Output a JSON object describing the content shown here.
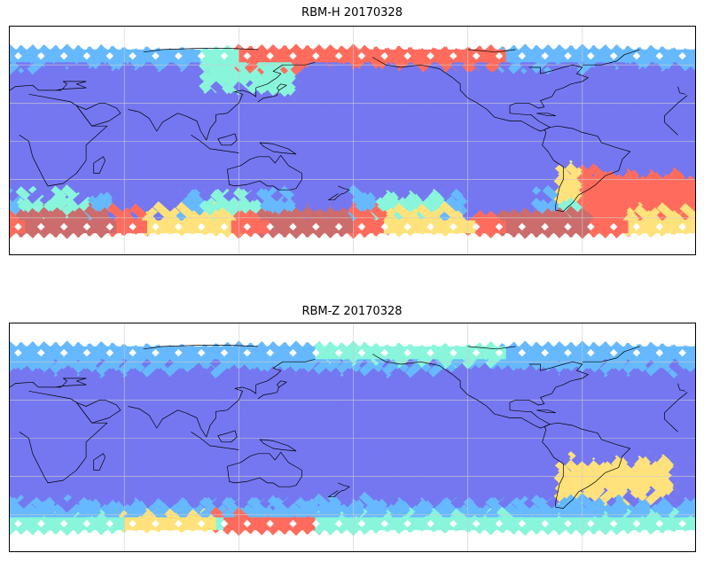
{
  "figure": {
    "panels": [
      {
        "title": "RBM-H 20170328",
        "colormap": "jet",
        "coverage_lat_range": [
          -72,
          72
        ],
        "high_value_regions": [
          "north-pacific-high-lat",
          "southern-ocean",
          "south-atlantic"
        ]
      },
      {
        "title": "RBM-Z 20170328",
        "colormap": "jet",
        "coverage_lat_range": [
          -72,
          72
        ],
        "high_value_regions": [
          "southern-ocean-indian",
          "south-atlantic"
        ]
      }
    ],
    "map": {
      "projection": "PlateCarree",
      "central_longitude": 180,
      "gridlines": true,
      "coastlines": true
    },
    "colors": {
      "low": "#6a6cf0",
      "mid_low": "#5ab4ff",
      "mid": "#7ff5d8",
      "mid_high": "#ffe070",
      "high": "#ff6050",
      "max": "#c86060",
      "coast": "#000000",
      "grid": "#cccccc"
    }
  }
}
